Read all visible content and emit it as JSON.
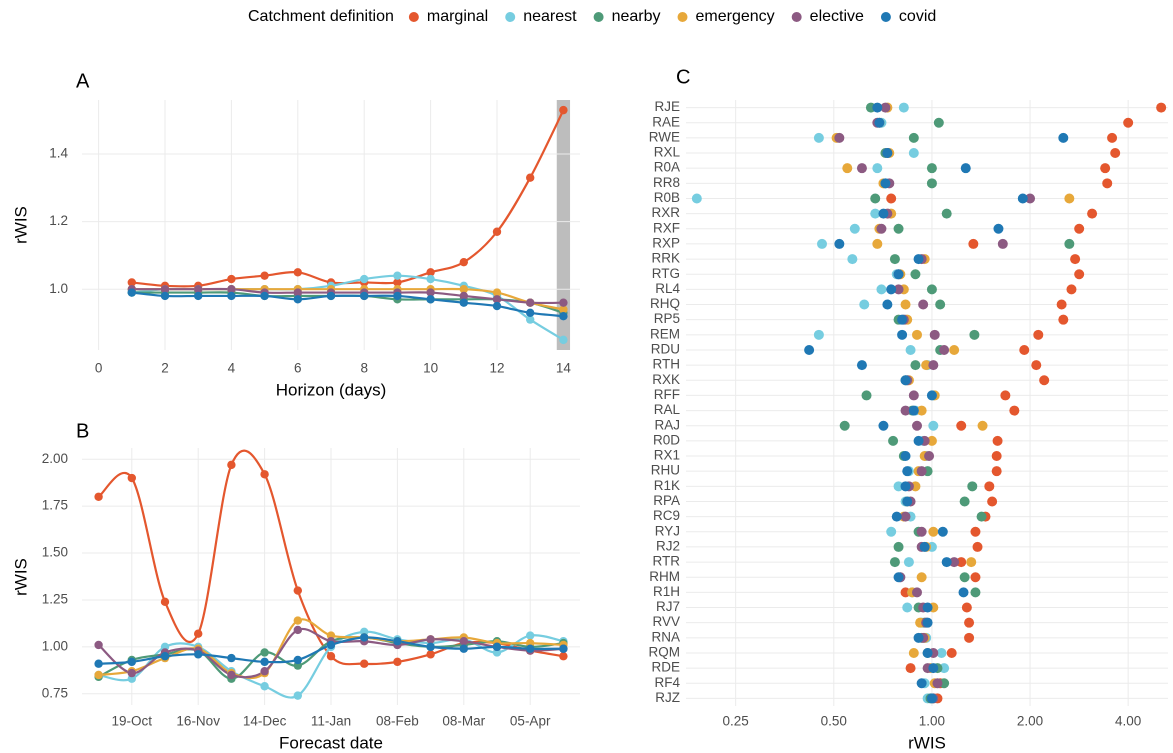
{
  "chart_data": [
    {
      "type": "line",
      "title": "A",
      "x_label": "Horizon (days)",
      "y_label": "rWIS",
      "legend_title": "Catchment definition",
      "x": [
        1,
        2,
        3,
        4,
        5,
        6,
        7,
        8,
        9,
        10,
        11,
        12,
        13,
        14
      ],
      "xlim": [
        -0.5,
        14.5
      ],
      "ylim": [
        0.82,
        1.56
      ],
      "xticks": [
        0,
        2,
        4,
        6,
        8,
        10,
        12,
        14
      ],
      "yticks": [
        {
          "value": 1,
          "label": "1.0"
        },
        1.2,
        1.4
      ],
      "highlight": [
        13.8,
        14.2
      ],
      "grid": true,
      "series": [
        {
          "name": "marginal",
          "color": "#E4572E",
          "values": [
            1.02,
            1.01,
            1.01,
            1.03,
            1.04,
            1.05,
            1.02,
            1.02,
            1.02,
            1.05,
            1.08,
            1.17,
            1.33,
            1.53
          ]
        },
        {
          "name": "nearest",
          "color": "#76CDE0",
          "values": [
            0.99,
            1.0,
            1.0,
            1.0,
            1.0,
            1.0,
            1.01,
            1.03,
            1.04,
            1.03,
            1.01,
            0.98,
            0.91,
            0.85
          ]
        },
        {
          "name": "nearby",
          "color": "#4E9A78",
          "values": [
            0.99,
            0.99,
            0.99,
            0.99,
            0.98,
            0.98,
            0.98,
            0.98,
            0.97,
            0.97,
            0.97,
            0.97,
            0.96,
            0.93
          ]
        },
        {
          "name": "emergency",
          "color": "#E7A83A",
          "values": [
            1.0,
            1.0,
            1.0,
            1.0,
            1.0,
            1.0,
            1.0,
            1.0,
            1.0,
            1.0,
            1.0,
            0.99,
            0.96,
            0.94
          ]
        },
        {
          "name": "elective",
          "color": "#8C5A82",
          "values": [
            1.0,
            1.0,
            1.0,
            1.0,
            0.99,
            0.99,
            0.99,
            0.99,
            0.99,
            0.99,
            0.98,
            0.97,
            0.96,
            0.96
          ]
        },
        {
          "name": "covid",
          "color": "#1F78B4",
          "values": [
            0.99,
            0.98,
            0.98,
            0.98,
            0.98,
            0.97,
            0.98,
            0.98,
            0.98,
            0.97,
            0.96,
            0.95,
            0.93,
            0.92
          ]
        }
      ]
    },
    {
      "type": "line",
      "title": "B",
      "x_label": "Forecast date",
      "y_label": "rWIS",
      "categories": [
        null,
        "19-Oct",
        null,
        "16-Nov",
        null,
        "14-Dec",
        null,
        "11-Jan",
        null,
        "08-Feb",
        null,
        "08-Mar",
        null,
        "05-Apr",
        null
      ],
      "ylim": [
        0.69,
        2.06
      ],
      "yticks": [
        0.75,
        {
          "value": 1,
          "label": "1.00"
        },
        1.25,
        {
          "value": 1.5,
          "label": "1.50"
        },
        1.75,
        {
          "value": 2,
          "label": "2.00"
        }
      ],
      "grid": true,
      "series": [
        {
          "name": "marginal",
          "color": "#E4572E",
          "values": [
            1.8,
            1.9,
            1.24,
            1.07,
            1.97,
            1.92,
            1.3,
            0.95,
            0.91,
            0.92,
            0.96,
            1.02,
            1.02,
            0.98,
            0.95
          ]
        },
        {
          "name": "nearest",
          "color": "#76CDE0",
          "values": [
            0.85,
            0.83,
            1.0,
            1.0,
            0.87,
            0.79,
            0.74,
            1.0,
            1.08,
            1.04,
            1.02,
            1.04,
            0.97,
            1.06,
            1.03
          ]
        },
        {
          "name": "nearby",
          "color": "#4E9A78",
          "values": [
            0.84,
            0.93,
            0.96,
            0.98,
            0.83,
            0.97,
            0.9,
            1.03,
            1.05,
            1.02,
            1.0,
            1.01,
            1.03,
            1.0,
            1.02
          ]
        },
        {
          "name": "emergency",
          "color": "#E7A83A",
          "values": [
            0.85,
            0.87,
            0.94,
            0.99,
            0.86,
            0.86,
            1.14,
            1.06,
            1.05,
            1.03,
            1.04,
            1.05,
            1.02,
            1.02,
            1.01
          ]
        },
        {
          "name": "elective",
          "color": "#8C5A82",
          "values": [
            1.01,
            0.86,
            0.97,
            0.98,
            0.85,
            0.87,
            1.09,
            1.03,
            1.03,
            1.01,
            1.04,
            1.03,
            1.0,
            0.98,
            0.99
          ]
        },
        {
          "name": "covid",
          "color": "#1F78B4",
          "values": [
            0.91,
            0.92,
            0.95,
            0.96,
            0.94,
            0.92,
            0.93,
            1.01,
            1.05,
            1.03,
            1.0,
            0.99,
            1.0,
            0.99,
            0.99
          ]
        }
      ]
    },
    {
      "type": "dot",
      "title": "C",
      "x_label": "rWIS",
      "log_x": true,
      "categories": [
        "RJE",
        "RAE",
        "RWE",
        "RXL",
        "R0A",
        "RR8",
        "R0B",
        "RXR",
        "RXF",
        "RXP",
        "RRK",
        "RTG",
        "RL4",
        "RHQ",
        "RP5",
        "REM",
        "RDU",
        "RTH",
        "RXK",
        "RFF",
        "RAL",
        "RAJ",
        "R0D",
        "RX1",
        "RHU",
        "R1K",
        "RPA",
        "RC9",
        "RYJ",
        "RJ2",
        "RTR",
        "RHM",
        "R1H",
        "RJ7",
        "RVV",
        "RNA",
        "RQM",
        "RDE",
        "RF4",
        "RJZ"
      ],
      "xlim": [
        0.176,
        5.3
      ],
      "xticks": [
        0.25,
        {
          "value": 0.5,
          "label": "0.50"
        },
        {
          "value": 1,
          "label": "1.00"
        },
        {
          "value": 2,
          "label": "2.00"
        },
        {
          "value": 4,
          "label": "4.00"
        }
      ],
      "grid": true,
      "series": [
        {
          "name": "marginal",
          "color": "#E4572E",
          "values": [
            5.05,
            4.0,
            3.57,
            3.65,
            3.4,
            3.45,
            0.75,
            3.1,
            2.83,
            1.34,
            2.75,
            2.83,
            2.68,
            2.5,
            2.53,
            2.12,
            1.92,
            2.09,
            2.21,
            1.68,
            1.79,
            1.23,
            1.59,
            1.58,
            1.58,
            1.5,
            1.53,
            1.46,
            1.36,
            1.38,
            1.23,
            1.36,
            0.83,
            1.28,
            1.3,
            1.3,
            1.15,
            0.86,
            1.06,
            1.04
          ]
        },
        {
          "name": "nearest",
          "color": "#76CDE0",
          "values": [
            0.82,
            0.7,
            0.45,
            0.88,
            0.68,
            0.72,
            0.19,
            0.67,
            0.58,
            0.46,
            0.57,
            0.78,
            0.7,
            0.62,
            0.83,
            0.45,
            0.86,
            0.97,
            0.84,
            1.01,
            0.89,
            1.01,
            0.94,
            0.96,
            0.85,
            0.79,
            0.83,
            0.86,
            0.75,
            1.0,
            0.85,
            0.8,
            0.87,
            0.84,
            0.93,
            0.96,
            1.07,
            1.09,
            0.95,
            0.97
          ]
        },
        {
          "name": "nearby",
          "color": "#4E9A78",
          "values": [
            0.65,
            1.05,
            0.88,
            0.72,
            1.0,
            1.0,
            0.67,
            1.11,
            0.79,
            2.64,
            0.77,
            0.89,
            1.0,
            1.06,
            0.79,
            1.35,
            1.06,
            0.89,
            0.83,
            0.63,
            0.87,
            0.54,
            0.76,
            0.82,
            0.97,
            1.33,
            1.26,
            1.42,
            0.91,
            0.79,
            0.77,
            1.26,
            1.36,
            0.91,
            0.95,
            0.93,
            0.97,
            1.04,
            1.09,
            0.99
          ]
        },
        {
          "name": "emergency",
          "color": "#E7A83A",
          "values": [
            0.73,
            0.69,
            0.51,
            0.74,
            0.55,
            0.71,
            2.64,
            0.75,
            0.69,
            0.68,
            0.95,
            0.8,
            0.82,
            0.83,
            0.84,
            0.9,
            1.17,
            0.96,
            0.85,
            1.02,
            0.93,
            1.43,
            1.0,
            0.95,
            0.91,
            0.89,
            0.84,
            0.82,
            1.01,
            0.96,
            1.32,
            0.93,
            0.87,
            1.01,
            0.92,
            0.95,
            0.88,
            0.99,
            1.02,
            1.01
          ]
        },
        {
          "name": "elective",
          "color": "#8C5A82",
          "values": [
            0.72,
            0.68,
            0.52,
            0.73,
            0.61,
            0.74,
            2.0,
            0.73,
            0.7,
            1.65,
            0.93,
            0.79,
            0.79,
            0.94,
            0.82,
            1.02,
            1.09,
            1.01,
            0.84,
            0.88,
            0.83,
            0.9,
            0.95,
            0.98,
            0.93,
            0.85,
            0.86,
            0.83,
            0.93,
            0.93,
            1.17,
            0.8,
            0.9,
            0.94,
            0.96,
            0.94,
            1.01,
            0.97,
            1.04,
            1.01
          ]
        },
        {
          "name": "covid",
          "color": "#1F78B4",
          "values": [
            0.68,
            0.69,
            2.53,
            0.73,
            1.27,
            0.72,
            1.9,
            0.71,
            1.6,
            0.52,
            0.91,
            0.79,
            0.75,
            0.73,
            0.81,
            0.81,
            0.42,
            0.61,
            0.83,
            1.0,
            0.88,
            0.71,
            0.91,
            0.83,
            0.84,
            0.83,
            0.84,
            0.78,
            1.08,
            0.95,
            1.11,
            0.79,
            1.25,
            0.97,
            0.97,
            0.91,
            0.97,
            1.01,
            0.93,
            1.0
          ]
        }
      ]
    }
  ]
}
